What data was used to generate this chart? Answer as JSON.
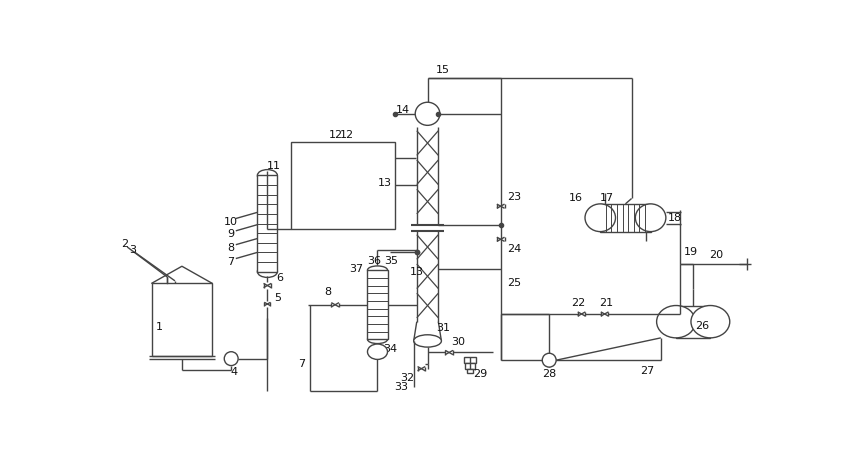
{
  "bg_color": "#ffffff",
  "line_color": "#444444",
  "fig_width": 8.47,
  "fig_height": 4.67,
  "dpi": 100
}
